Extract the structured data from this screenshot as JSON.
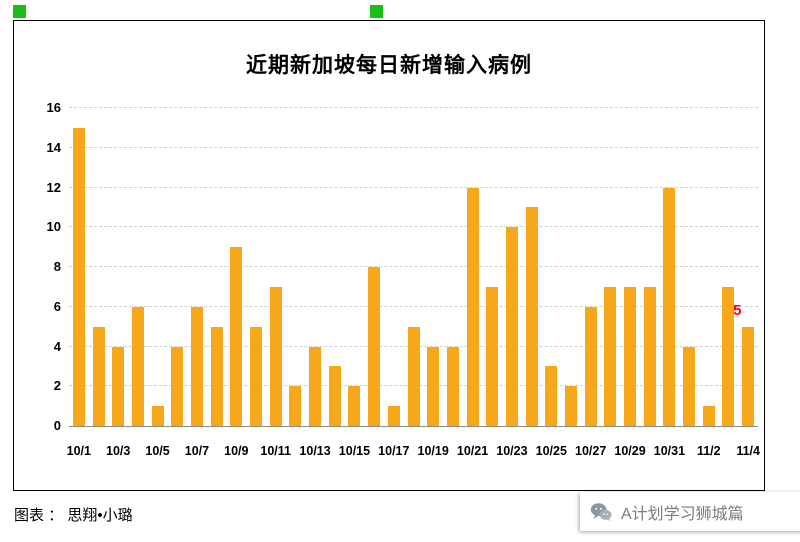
{
  "page": {
    "handle_color": "#17c017",
    "caption": {
      "label": "图表 ：",
      "value": "思翔•小璐"
    },
    "watermark": {
      "icon": "wechat-icon",
      "text": "A计划学习狮城篇"
    }
  },
  "chart_data": {
    "type": "bar",
    "title": "近期新加坡每日新增输入病例",
    "xlabel": "",
    "ylabel": "",
    "legend": "none",
    "grid": "horizontal-dashed",
    "ylim": [
      0,
      16
    ],
    "y_ticks": [
      0,
      2,
      4,
      6,
      8,
      10,
      12,
      14,
      16
    ],
    "bar_color": "#F7A71A",
    "categories": [
      "10/1",
      "10/2",
      "10/3",
      "10/4",
      "10/5",
      "10/6",
      "10/7",
      "10/8",
      "10/9",
      "10/10",
      "10/11",
      "10/12",
      "10/13",
      "10/14",
      "10/15",
      "10/16",
      "10/17",
      "10/18",
      "10/19",
      "10/20",
      "10/21",
      "10/22",
      "10/23",
      "10/24",
      "10/25",
      "10/26",
      "10/27",
      "10/28",
      "10/29",
      "10/30",
      "10/31",
      "11/1",
      "11/2",
      "11/3",
      "11/4"
    ],
    "values": [
      15,
      5,
      4,
      6,
      1,
      4,
      6,
      5,
      9,
      5,
      7,
      2,
      4,
      3,
      2,
      8,
      1,
      5,
      4,
      4,
      12,
      7,
      10,
      11,
      3,
      2,
      6,
      7,
      7,
      7,
      12,
      4,
      1,
      7,
      5
    ],
    "x_tick_labels": [
      "10/1",
      "10/3",
      "10/5",
      "10/7",
      "10/9",
      "10/11",
      "10/13",
      "10/15",
      "10/17",
      "10/19",
      "10/21",
      "10/23",
      "10/25",
      "10/27",
      "10/29",
      "10/31",
      "11/2",
      "11/4"
    ],
    "annotation": {
      "text": "5",
      "color": "#FF0000",
      "target_category": "11/4"
    }
  }
}
